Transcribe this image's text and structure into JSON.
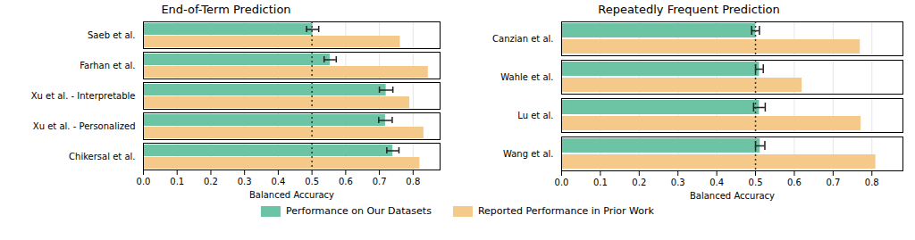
{
  "chart_data": [
    {
      "type": "bar",
      "orientation": "horizontal",
      "title": "End-of-Term Prediction",
      "xlabel": "Balanced Accuracy",
      "categories": [
        "Saeb et al.",
        "Farhan et al.",
        "Xu et al. - Interpretable",
        "Xu et al. - Personalized",
        "Chikersal et al."
      ],
      "series": [
        {
          "name": "Performance on Our Datasets",
          "color": "#6CC4A4",
          "values": [
            0.502,
            0.554,
            0.72,
            0.718,
            0.74
          ],
          "errors": [
            0.018,
            0.018,
            0.02,
            0.02,
            0.018
          ]
        },
        {
          "name": "Reported Performance in Prior Work",
          "color": "#F5C98A",
          "values": [
            0.762,
            0.845,
            0.79,
            0.832,
            0.82
          ]
        }
      ],
      "baseline": 0.5,
      "xlim": [
        0.0,
        0.88
      ],
      "xticks": [
        {
          "value": 0.0,
          "label": "0.0"
        },
        0.1,
        0.2,
        0.3,
        0.4,
        0.5,
        0.6,
        0.7,
        0.8
      ],
      "grid": true,
      "legend": "bottom"
    },
    {
      "type": "bar",
      "orientation": "horizontal",
      "title": "Repeatedly Frequent Prediction",
      "xlabel": "Balanced Accuracy",
      "categories": [
        "Canzian et al.",
        "Wahle et al.",
        "Lu et al.",
        "Wang et al."
      ],
      "series": [
        {
          "name": "Performance on Our Datasets",
          "color": "#6CC4A4",
          "values": [
            0.5,
            0.51,
            0.51,
            0.512
          ],
          "errors": [
            0.01,
            0.01,
            0.015,
            0.012
          ]
        },
        {
          "name": "Reported Performance in Prior Work",
          "color": "#F5C98A",
          "values": [
            0.77,
            0.62,
            0.772,
            0.81
          ]
        }
      ],
      "baseline": 0.5,
      "xlim": [
        0.0,
        0.88
      ],
      "xticks": [
        {
          "value": 0.0,
          "label": "0.0"
        },
        0.1,
        0.2,
        0.3,
        0.4,
        0.5,
        0.6,
        0.7,
        0.8
      ],
      "grid": true,
      "legend": "bottom"
    }
  ]
}
